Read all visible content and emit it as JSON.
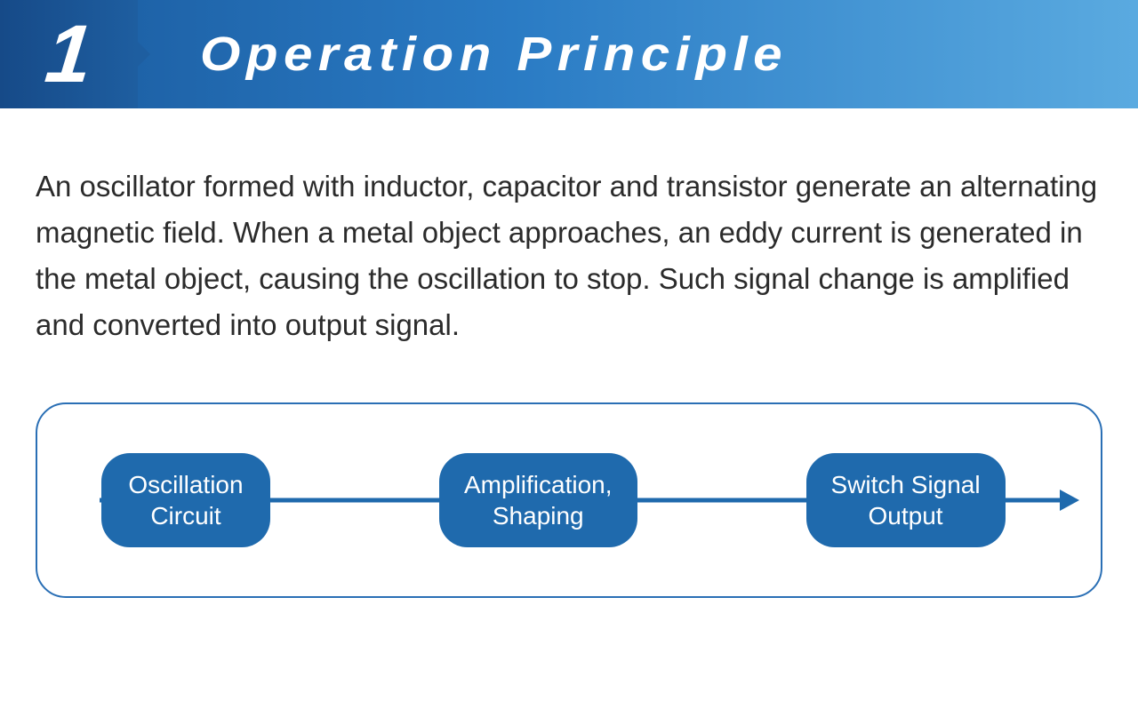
{
  "header": {
    "number": "1",
    "title": "Operation Principle",
    "number_bg_gradient": [
      "#164a88",
      "#1e5ea0"
    ],
    "bar_gradient": [
      "#1a5a9e",
      "#2a7bc4",
      "#5aaae0"
    ],
    "title_color": "#ffffff",
    "title_fontsize": 54,
    "number_fontsize": 92
  },
  "description": {
    "text": "An oscillator formed with inductor, capacitor and transistor generate an alternating magnetic field. When a metal object approaches, an eddy current is generated in the metal object, causing the oscillation to stop. Such signal change is amplified and converted into output signal.",
    "color": "#2b2b2b",
    "fontsize": 33,
    "line_height": 1.58
  },
  "flowchart": {
    "type": "flowchart",
    "border_color": "#2a6fb5",
    "border_radius": 34,
    "background_color": "#ffffff",
    "line_color": "#1f6aad",
    "line_width": 5,
    "arrowhead_color": "#1f6aad",
    "node_bg": "#1f6aad",
    "node_text_color": "#ffffff",
    "node_fontsize": 28,
    "node_border_radius": 32,
    "nodes": [
      {
        "id": "oscillation",
        "label": "Oscillation\nCircuit"
      },
      {
        "id": "amplification",
        "label": "Amplification,\nShaping"
      },
      {
        "id": "output",
        "label": "Switch Signal\nOutput"
      }
    ],
    "edges": [
      {
        "from": "oscillation",
        "to": "amplification"
      },
      {
        "from": "amplification",
        "to": "output"
      },
      {
        "from": "output",
        "to": "arrow-end"
      }
    ]
  }
}
